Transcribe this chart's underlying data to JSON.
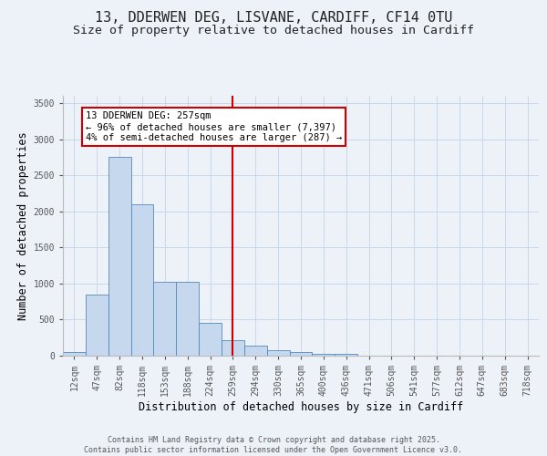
{
  "title_line1": "13, DDERWEN DEG, LISVANE, CARDIFF, CF14 0TU",
  "title_line2": "Size of property relative to detached houses in Cardiff",
  "xlabel": "Distribution of detached houses by size in Cardiff",
  "ylabel": "Number of detached properties",
  "bar_labels": [
    "12sqm",
    "47sqm",
    "82sqm",
    "118sqm",
    "153sqm",
    "188sqm",
    "224sqm",
    "259sqm",
    "294sqm",
    "330sqm",
    "365sqm",
    "400sqm",
    "436sqm",
    "471sqm",
    "506sqm",
    "541sqm",
    "577sqm",
    "612sqm",
    "647sqm",
    "683sqm",
    "718sqm"
  ],
  "bar_values": [
    55,
    850,
    2750,
    2100,
    1020,
    1020,
    450,
    220,
    135,
    70,
    55,
    30,
    20,
    5,
    5,
    0,
    0,
    0,
    0,
    0,
    0
  ],
  "bar_color": "#c5d8ee",
  "bar_edgecolor": "#5588bb",
  "grid_color": "#c8d8ea",
  "background_color": "#edf2f8",
  "vline_color": "#cc0000",
  "vline_x": 7,
  "annotation_text": "13 DDERWEN DEG: 257sqm\n← 96% of detached houses are smaller (7,397)\n4% of semi-detached houses are larger (287) →",
  "annotation_box_facecolor": "#ffffff",
  "annotation_box_edgecolor": "#cc0000",
  "ylim": [
    0,
    3600
  ],
  "yticks": [
    0,
    500,
    1000,
    1500,
    2000,
    2500,
    3000,
    3500
  ],
  "footer_text": "Contains HM Land Registry data © Crown copyright and database right 2025.\nContains public sector information licensed under the Open Government Licence v3.0.",
  "title_fontsize": 11,
  "subtitle_fontsize": 9.5,
  "tick_fontsize": 7,
  "label_fontsize": 8.5,
  "annotation_fontsize": 7.5,
  "footer_fontsize": 6
}
